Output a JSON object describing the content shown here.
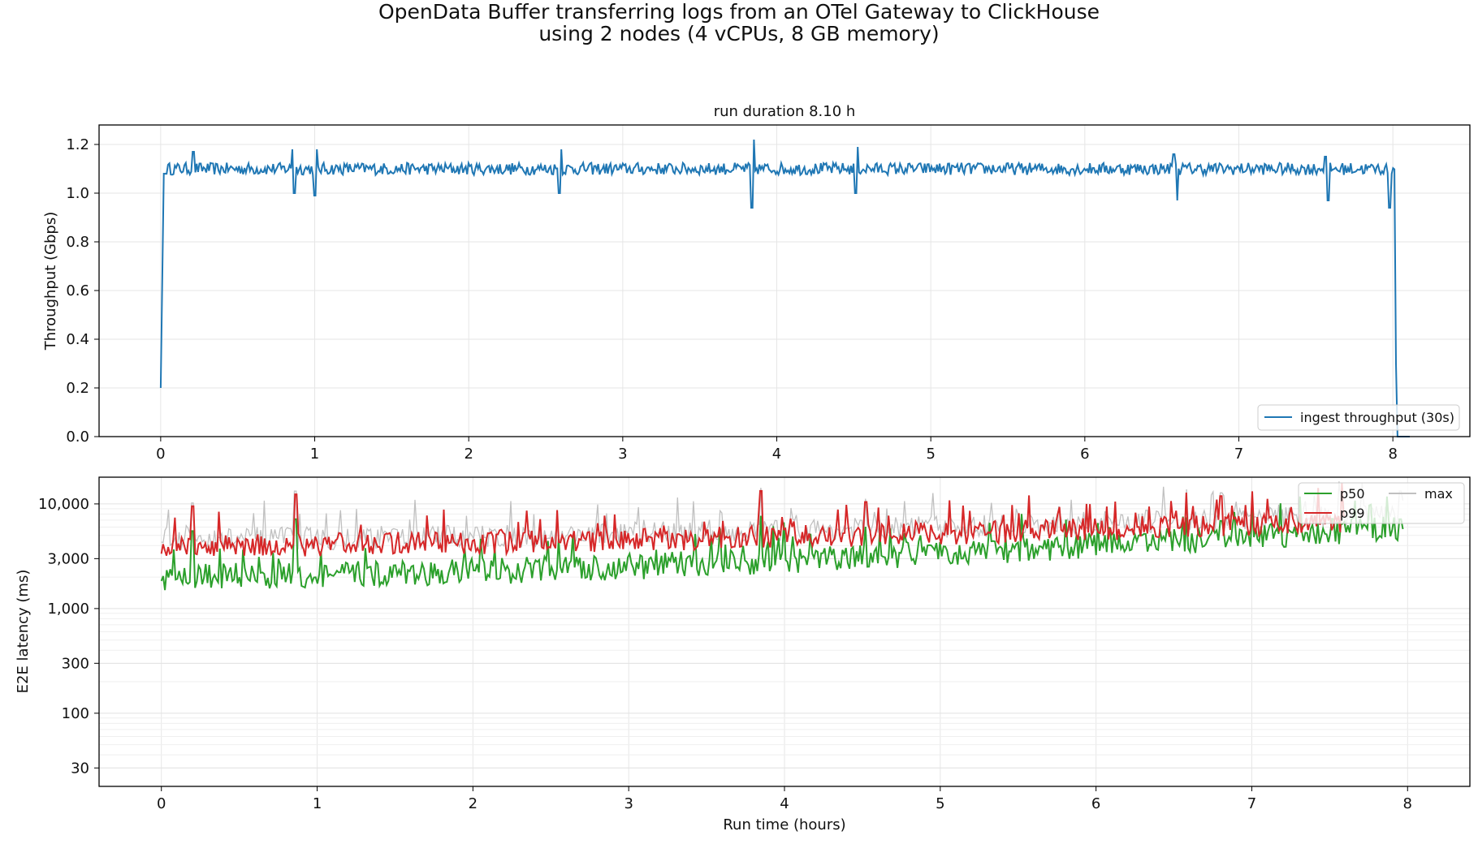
{
  "figure": {
    "title_line1": "OpenData Buffer transferring logs from an OTel Gateway to ClickHouse",
    "title_line2": "using 2 nodes (4 vCPUs, 8 GB memory)"
  },
  "chart_data": [
    {
      "type": "line",
      "title": "run duration 8.10 h",
      "xlabel": "",
      "ylabel": "Throughput  (Gbps)",
      "xlim": [
        -0.4,
        8.5
      ],
      "ylim": [
        0.0,
        1.28
      ],
      "xticks": [
        0,
        1,
        2,
        3,
        4,
        5,
        6,
        7,
        8
      ],
      "xtick_labels": [
        "0",
        "1",
        "2",
        "3",
        "4",
        "5",
        "6",
        "7",
        "8"
      ],
      "yticks": [
        0.0,
        0.2,
        0.4,
        0.6,
        0.8,
        1.0,
        1.2
      ],
      "ytick_labels": [
        "0.0",
        "0.2",
        "0.4",
        "0.6",
        "0.8",
        "1.0",
        "1.2"
      ],
      "grid": true,
      "legend_position": "lower-right",
      "color": "#1f77b4",
      "series": [
        {
          "name": "ingest throughput (30s)",
          "color": "#1f77b4",
          "baseline": 1.1,
          "noise": 0.025,
          "x_start": 0.0,
          "x_end": 8.01,
          "start_value": 0.2,
          "end_value": 0.0,
          "spikes": [
            {
              "x": 0.21,
              "y": 1.17
            },
            {
              "x": 0.86,
              "y": 1.18
            },
            {
              "x": 0.87,
              "y": 1.0
            },
            {
              "x": 1.01,
              "y": 1.18
            },
            {
              "x": 1.0,
              "y": 0.99
            },
            {
              "x": 2.6,
              "y": 1.18
            },
            {
              "x": 2.59,
              "y": 1.0
            },
            {
              "x": 3.85,
              "y": 1.22
            },
            {
              "x": 3.84,
              "y": 0.94
            },
            {
              "x": 4.52,
              "y": 1.19
            },
            {
              "x": 4.51,
              "y": 1.0
            },
            {
              "x": 6.58,
              "y": 1.16
            },
            {
              "x": 6.6,
              "y": 0.97
            },
            {
              "x": 7.56,
              "y": 1.15
            },
            {
              "x": 7.58,
              "y": 0.97
            },
            {
              "x": 7.98,
              "y": 0.94
            }
          ]
        }
      ]
    },
    {
      "type": "line",
      "title": "",
      "xlabel": "Run time  (hours)",
      "ylabel": "E2E latency  (ms)",
      "xlim": [
        -0.4,
        8.4
      ],
      "ylim": [
        20,
        18000
      ],
      "yscale": "log",
      "xticks": [
        0,
        1,
        2,
        3,
        4,
        5,
        6,
        7,
        8
      ],
      "xtick_labels": [
        "0",
        "1",
        "2",
        "3",
        "4",
        "5",
        "6",
        "7",
        "8"
      ],
      "yticks": [
        30,
        100,
        300,
        1000,
        3000,
        10000
      ],
      "ytick_labels": [
        "30",
        "100",
        "300",
        "1,000",
        "3,000",
        "10,000"
      ],
      "grid": true,
      "legend_position": "upper-right",
      "series": [
        {
          "name": "p50",
          "color": "#2ca02c",
          "start": 2000,
          "end": 6000,
          "x_end": 7.97,
          "spikiness": 0.18
        },
        {
          "name": "p99",
          "color": "#d62728",
          "start": 4000,
          "end": 6800,
          "x_end": 7.6,
          "spikiness": 0.16
        },
        {
          "name": "max",
          "color": "#c0c0c0",
          "start": 4600,
          "end": 8000,
          "x_end": 7.97,
          "spikiness": 0.16
        }
      ],
      "spikes": [
        {
          "x": 0.2,
          "y": 10000
        },
        {
          "x": 0.86,
          "y": 13000
        },
        {
          "x": 3.85,
          "y": 14000
        },
        {
          "x": 4.52,
          "y": 11000
        },
        {
          "x": 6.58,
          "y": 13500
        },
        {
          "x": 6.8,
          "y": 12500
        },
        {
          "x": 7.95,
          "y": 13000
        }
      ]
    }
  ]
}
